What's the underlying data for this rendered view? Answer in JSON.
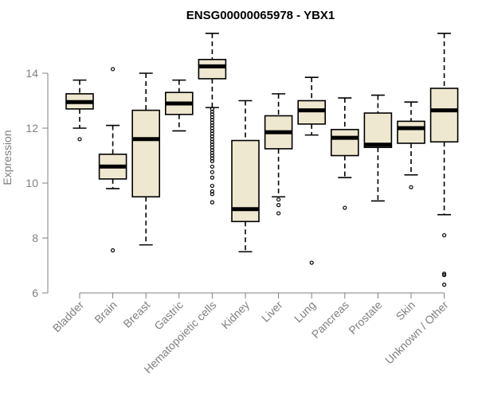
{
  "chart_data": {
    "type": "box",
    "title": "ENSG00000065978 - YBX1",
    "xlabel": "",
    "ylabel": "Expression",
    "ylim": [
      6,
      15.5
    ],
    "yticks": [
      6,
      8,
      10,
      12,
      14
    ],
    "grid": false,
    "colors": {
      "box_fill": "#efe8d0",
      "box_stroke": "#000000",
      "median": "#000000",
      "axis": "#808080"
    },
    "categories": [
      "Bladder",
      "Brain",
      "Breast",
      "Gastric",
      "Hematopoietic cells",
      "Kidney",
      "Liver",
      "Lung",
      "Pancreas",
      "Prostate",
      "Skin",
      "Unknown / Other"
    ],
    "boxes": [
      {
        "category": "Bladder",
        "whisker_low": 12.0,
        "q1": 12.7,
        "median": 12.95,
        "q3": 13.25,
        "whisker_high": 13.75,
        "outliers": [
          11.6
        ]
      },
      {
        "category": "Brain",
        "whisker_low": 9.8,
        "q1": 10.15,
        "median": 10.6,
        "q3": 11.05,
        "whisker_high": 12.1,
        "outliers": [
          14.15,
          7.55
        ]
      },
      {
        "category": "Breast",
        "whisker_low": 7.75,
        "q1": 9.5,
        "median": 11.6,
        "q3": 12.65,
        "whisker_high": 14.0,
        "outliers": []
      },
      {
        "category": "Gastric",
        "whisker_low": 11.9,
        "q1": 12.5,
        "median": 12.9,
        "q3": 13.3,
        "whisker_high": 13.75,
        "outliers": []
      },
      {
        "category": "Hematopoietic cells",
        "whisker_low": 12.75,
        "q1": 13.8,
        "median": 14.25,
        "q3": 14.5,
        "whisker_high": 15.45,
        "outliers": [
          12.7,
          12.6,
          12.5,
          12.4,
          12.3,
          12.2,
          12.1,
          12.0,
          11.9,
          11.8,
          11.7,
          11.6,
          11.5,
          11.4,
          11.3,
          11.2,
          11.1,
          11.0,
          10.9,
          10.8,
          10.6,
          10.4,
          10.2,
          9.9,
          9.7,
          9.6,
          9.3
        ]
      },
      {
        "category": "Kidney",
        "whisker_low": 7.5,
        "q1": 8.6,
        "median": 9.05,
        "q3": 11.55,
        "whisker_high": 13.0,
        "outliers": []
      },
      {
        "category": "Liver",
        "whisker_low": 9.5,
        "q1": 11.25,
        "median": 11.85,
        "q3": 12.45,
        "whisker_high": 13.25,
        "outliers": [
          9.4,
          9.2,
          8.9
        ]
      },
      {
        "category": "Lung",
        "whisker_low": 11.75,
        "q1": 12.15,
        "median": 12.65,
        "q3": 13.0,
        "whisker_high": 13.85,
        "outliers": [
          7.1
        ]
      },
      {
        "category": "Pancreas",
        "whisker_low": 10.2,
        "q1": 11.0,
        "median": 11.65,
        "q3": 11.95,
        "whisker_high": 13.1,
        "outliers": [
          9.1
        ]
      },
      {
        "category": "Prostate",
        "whisker_low": 9.35,
        "q1": 11.3,
        "median": 11.4,
        "q3": 12.55,
        "whisker_high": 13.2,
        "outliers": []
      },
      {
        "category": "Skin",
        "whisker_low": 10.3,
        "q1": 11.45,
        "median": 12.0,
        "q3": 12.25,
        "whisker_high": 12.95,
        "outliers": [
          9.85
        ]
      },
      {
        "category": "Unknown / Other",
        "whisker_low": 8.85,
        "q1": 11.5,
        "median": 12.65,
        "q3": 13.45,
        "whisker_high": 15.45,
        "outliers": [
          8.1,
          6.7,
          6.65,
          6.3
        ]
      }
    ]
  }
}
